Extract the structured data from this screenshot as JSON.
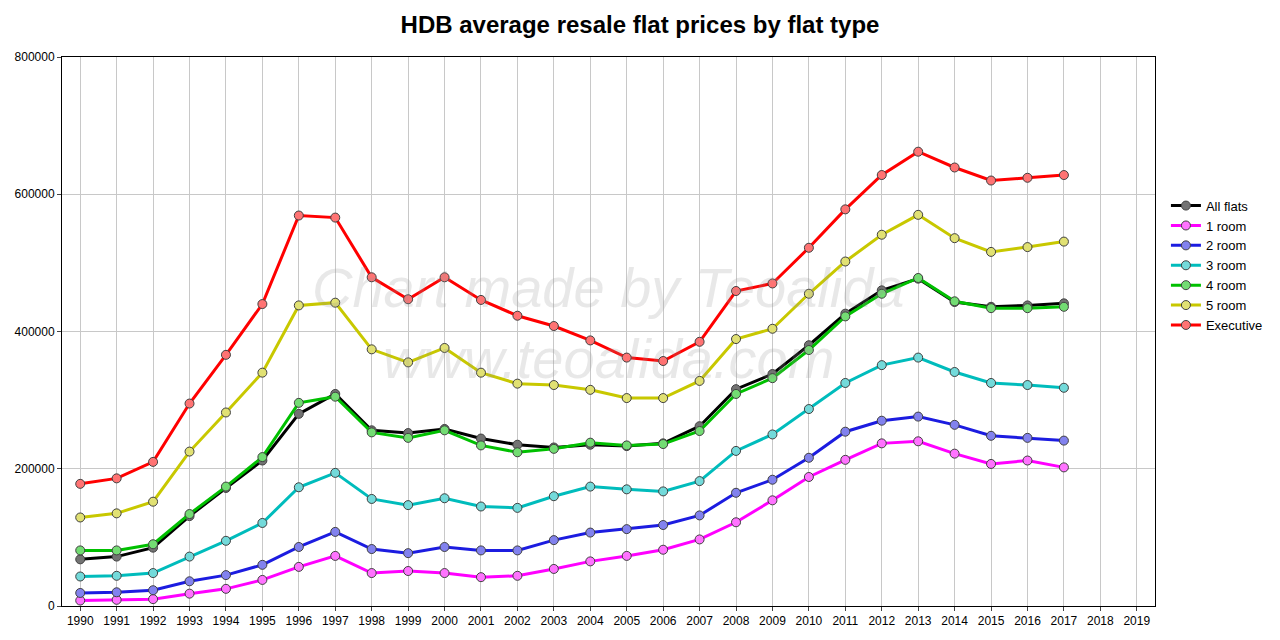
{
  "chart_data": {
    "type": "line",
    "title": "HDB average resale flat prices by flat type",
    "annotations": [
      "Chart made by Teoalida",
      "www.teoalida.com"
    ],
    "x": [
      1990,
      1991,
      1992,
      1993,
      1994,
      1995,
      1996,
      1997,
      1998,
      1999,
      2000,
      2001,
      2002,
      2003,
      2004,
      2005,
      2006,
      2007,
      2008,
      2009,
      2010,
      2011,
      2012,
      2013,
      2014,
      2015,
      2016,
      2017
    ],
    "xlim": [
      1989.5,
      2019.5
    ],
    "xticks": [
      1990,
      1991,
      1992,
      1993,
      1994,
      1995,
      1996,
      1997,
      1998,
      1999,
      2000,
      2001,
      2002,
      2003,
      2004,
      2005,
      2006,
      2007,
      2008,
      2009,
      2010,
      2011,
      2012,
      2013,
      2014,
      2015,
      2016,
      2017,
      2018,
      2019
    ],
    "ylim": [
      0,
      800000
    ],
    "yticks": [
      0,
      200000,
      400000,
      600000,
      800000
    ],
    "grid": true,
    "legend": "right",
    "marker": "circle",
    "series": [
      {
        "name": "All flats",
        "color": "#000000",
        "values": [
          68000,
          72000,
          85000,
          131000,
          172000,
          212000,
          280000,
          309000,
          256000,
          252000,
          258000,
          244000,
          235000,
          231000,
          235000,
          233000,
          237000,
          262000,
          316000,
          338000,
          380000,
          426000,
          460000,
          477000,
          443000,
          436000,
          438000,
          441000
        ]
      },
      {
        "name": "1 room",
        "color": "#ff00ff",
        "values": [
          8000,
          9000,
          10000,
          18000,
          25000,
          38000,
          57000,
          73000,
          48000,
          51000,
          48000,
          42000,
          44000,
          54000,
          65000,
          73000,
          82000,
          97000,
          122000,
          154000,
          188000,
          213000,
          237000,
          240000,
          222000,
          207000,
          212000,
          202000
        ]
      },
      {
        "name": "2 room",
        "color": "#1c1ce0",
        "values": [
          19000,
          20000,
          23000,
          36000,
          45000,
          60000,
          86000,
          108000,
          83000,
          77000,
          86000,
          81000,
          81000,
          96000,
          107000,
          112000,
          118000,
          132000,
          165000,
          184000,
          216000,
          254000,
          270000,
          276000,
          264000,
          248000,
          245000,
          241000
        ]
      },
      {
        "name": "3 room",
        "color": "#00bcbc",
        "values": [
          43000,
          44000,
          48000,
          72000,
          95000,
          121000,
          173000,
          194000,
          156000,
          147000,
          157000,
          145000,
          143000,
          160000,
          174000,
          170000,
          167000,
          182000,
          226000,
          250000,
          287000,
          325000,
          351000,
          362000,
          341000,
          325000,
          322000,
          318000
        ]
      },
      {
        "name": "4 room",
        "color": "#00c000",
        "values": [
          81000,
          81000,
          90000,
          134000,
          174000,
          217000,
          296000,
          305000,
          253000,
          245000,
          256000,
          234000,
          224000,
          229000,
          238000,
          234000,
          236000,
          255000,
          309000,
          332000,
          373000,
          422000,
          455000,
          478000,
          444000,
          434000,
          434000,
          436000
        ]
      },
      {
        "name": "5 room",
        "color": "#c8c800",
        "values": [
          129000,
          135000,
          152000,
          225000,
          282000,
          340000,
          438000,
          442000,
          374000,
          355000,
          376000,
          340000,
          324000,
          322000,
          315000,
          303000,
          303000,
          328000,
          389000,
          404000,
          455000,
          502000,
          541000,
          570000,
          536000,
          516000,
          523000,
          531000
        ]
      },
      {
        "name": "Executive",
        "color": "#ff0000",
        "values": [
          178000,
          186000,
          210000,
          295000,
          366000,
          440000,
          569000,
          566000,
          479000,
          447000,
          479000,
          446000,
          423000,
          408000,
          387000,
          362000,
          357000,
          385000,
          459000,
          470000,
          522000,
          578000,
          628000,
          662000,
          639000,
          620000,
          624000,
          628000
        ]
      }
    ]
  }
}
